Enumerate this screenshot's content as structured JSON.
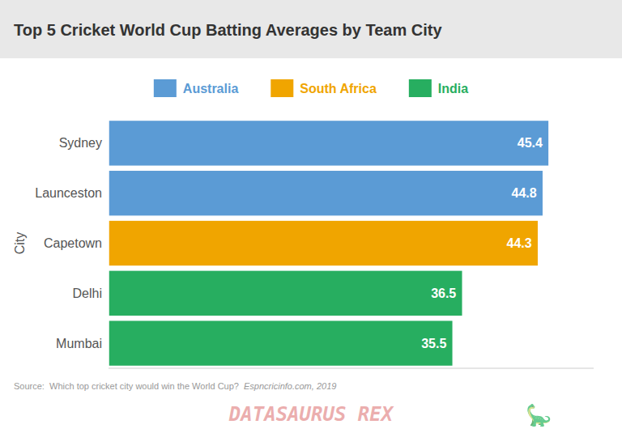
{
  "chart_data": {
    "type": "bar",
    "orientation": "horizontal",
    "stacked": true,
    "data_labels": true,
    "tick_labels": "y",
    "title": "Top 5 Cricket World Cup Batting Averages by Team City",
    "ylabel": "City",
    "categories": [
      "Sydney",
      "Launceston",
      "Capetown",
      "Delhi",
      "Mumbai"
    ],
    "series": [
      {
        "name": "Australia",
        "color": "#5b9bd5",
        "values": [
          45.4,
          44.8,
          null,
          null,
          null
        ]
      },
      {
        "name": "South Africa",
        "color": "#f0a500",
        "values": [
          null,
          null,
          44.3,
          null,
          null
        ]
      },
      {
        "name": "India",
        "color": "#27ae60",
        "values": [
          null,
          null,
          null,
          36.5,
          35.5
        ]
      }
    ],
    "xlim": [
      0,
      50
    ],
    "annotations": [
      "Source:  Which top cricket city would win the World Cup? ",
      "Espncricinfo.com, 2019",
      "DATASAURUS REX",
      "🦕"
    ]
  }
}
